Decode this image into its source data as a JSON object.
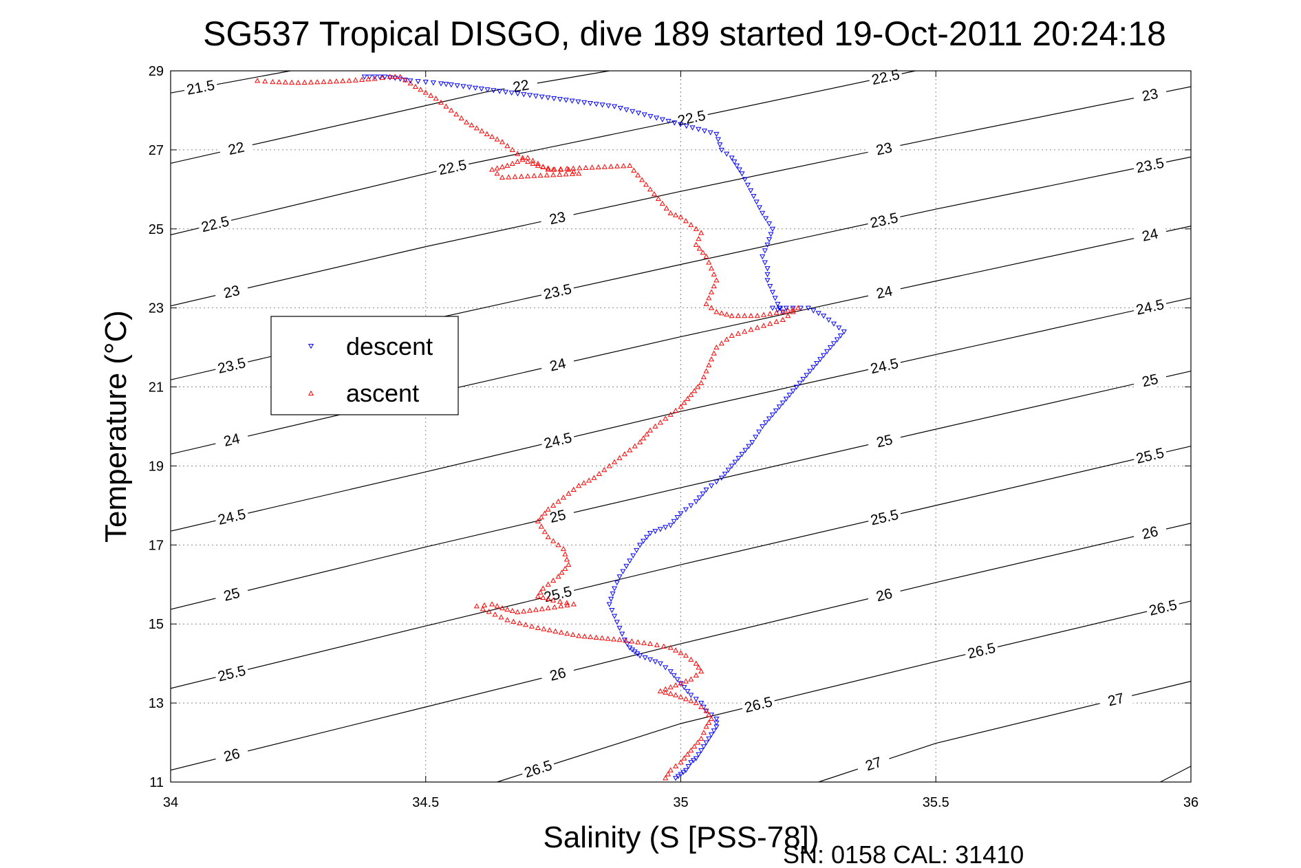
{
  "chart_data": {
    "type": "scatter",
    "title": "SG537 Tropical DISGO, dive 189 started 19-Oct-2011 20:24:18",
    "xlabel": "Salinity (S [PSS-78])",
    "ylabel": "Temperature (°C)",
    "xlim": [
      34,
      36
    ],
    "ylim": [
      11,
      29
    ],
    "xticks": [
      "34",
      "34.5",
      "35",
      "35.5",
      "36"
    ],
    "yticks": [
      "11",
      "13",
      "15",
      "17",
      "19",
      "21",
      "23",
      "25",
      "27",
      "29"
    ],
    "grid": true,
    "legend_position": "upper-left",
    "annotation": "SN: 0158  CAL: 31410",
    "density_contours": [
      {
        "label": "21.5",
        "points": [
          [
            34.0,
            28.44
          ],
          [
            34.235,
            29.0
          ]
        ]
      },
      {
        "label": "22",
        "points": [
          [
            34.0,
            26.66
          ],
          [
            34.62,
            28.47
          ],
          [
            34.86,
            29.0
          ]
        ]
      },
      {
        "label": "22.5",
        "points": [
          [
            34.0,
            24.85
          ],
          [
            34.55,
            26.55
          ],
          [
            35.0,
            27.75
          ],
          [
            35.46,
            29.0
          ]
        ]
      },
      {
        "label": "23",
        "points": [
          [
            34.0,
            23.05
          ],
          [
            34.5,
            24.55
          ],
          [
            35.0,
            25.95
          ],
          [
            35.5,
            27.3
          ],
          [
            36.0,
            28.6
          ]
        ]
      },
      {
        "label": "23.5",
        "points": [
          [
            34.0,
            21.18
          ],
          [
            34.5,
            22.68
          ],
          [
            35.0,
            24.1
          ],
          [
            35.5,
            25.5
          ],
          [
            36.0,
            26.82
          ]
        ]
      },
      {
        "label": "24",
        "points": [
          [
            34.0,
            19.3
          ],
          [
            34.5,
            20.8
          ],
          [
            35.0,
            22.27
          ],
          [
            35.5,
            23.68
          ],
          [
            36.0,
            25.07
          ]
        ]
      },
      {
        "label": "24.5",
        "points": [
          [
            34.0,
            17.35
          ],
          [
            34.5,
            18.85
          ],
          [
            35.0,
            20.38
          ],
          [
            35.5,
            21.82
          ],
          [
            36.0,
            23.25
          ]
        ]
      },
      {
        "label": "25",
        "points": [
          [
            34.0,
            15.37
          ],
          [
            34.5,
            16.95
          ],
          [
            35.0,
            18.45
          ],
          [
            35.5,
            19.93
          ],
          [
            36.0,
            21.4
          ]
        ]
      },
      {
        "label": "25.5",
        "points": [
          [
            34.0,
            13.37
          ],
          [
            34.5,
            14.95
          ],
          [
            35.0,
            16.5
          ],
          [
            35.5,
            18.0
          ],
          [
            36.0,
            19.5
          ]
        ]
      },
      {
        "label": "26",
        "points": [
          [
            34.0,
            11.3
          ],
          [
            34.5,
            12.9
          ],
          [
            35.0,
            14.5
          ],
          [
            35.5,
            16.05
          ],
          [
            36.0,
            17.55
          ]
        ]
      },
      {
        "label": "26.5",
        "points": [
          [
            34.64,
            11.0
          ],
          [
            35.0,
            12.48
          ],
          [
            35.5,
            14.05
          ],
          [
            36.0,
            15.58
          ]
        ]
      },
      {
        "label": "27",
        "points": [
          [
            35.27,
            11.0
          ],
          [
            35.5,
            11.98
          ],
          [
            36.0,
            13.55
          ]
        ]
      },
      {
        "label": "",
        "points": [
          [
            35.94,
            11.0
          ],
          [
            36.0,
            11.4
          ]
        ]
      }
    ],
    "series": [
      {
        "name": "descent",
        "color": "#0000ff",
        "marker": "triangle-down",
        "x": [
          34.38,
          34.4,
          34.42,
          34.44,
          34.47,
          34.5,
          34.53,
          34.55,
          34.87,
          35.07,
          35.08,
          35.1,
          35.11,
          35.12,
          35.16,
          35.18,
          35.17,
          35.16,
          35.17,
          35.17,
          35.18,
          35.19,
          35.2,
          35.18,
          35.22,
          35.25,
          35.28,
          35.3,
          35.32,
          35.3,
          35.28,
          35.26,
          35.24,
          35.22,
          35.2,
          35.18,
          35.16,
          35.14,
          35.12,
          35.1,
          35.08,
          35.05,
          35.03,
          35.0,
          34.98,
          34.94,
          34.92,
          34.9,
          34.88,
          34.87,
          34.86,
          34.87,
          34.88,
          34.89,
          34.9,
          34.91,
          34.92,
          34.94,
          34.96,
          34.98,
          35.0,
          35.02,
          35.04,
          35.05,
          35.07,
          35.07,
          35.06,
          35.05,
          35.04,
          35.03,
          35.02,
          35.01,
          35.0,
          34.99
        ],
        "y": [
          28.85,
          28.85,
          28.85,
          28.82,
          28.75,
          28.72,
          28.68,
          28.65,
          28.1,
          27.4,
          27.0,
          26.8,
          26.6,
          26.4,
          25.4,
          25.0,
          24.6,
          24.3,
          24.0,
          23.7,
          23.4,
          23.1,
          22.9,
          23.0,
          23.0,
          23.0,
          22.8,
          22.6,
          22.4,
          22.1,
          21.8,
          21.5,
          21.2,
          20.9,
          20.6,
          20.3,
          20.0,
          19.6,
          19.3,
          19.0,
          18.7,
          18.4,
          18.1,
          17.8,
          17.5,
          17.3,
          17.0,
          16.6,
          16.2,
          15.9,
          15.5,
          15.2,
          14.9,
          14.6,
          14.4,
          14.3,
          14.2,
          14.1,
          14.0,
          13.8,
          13.5,
          13.2,
          13.0,
          12.8,
          12.6,
          12.4,
          12.2,
          12.0,
          11.8,
          11.6,
          11.5,
          11.3,
          11.2,
          11.1
        ]
      },
      {
        "name": "ascent",
        "color": "#ff0000",
        "marker": "triangle-up",
        "x": [
          34.17,
          34.2,
          34.25,
          34.3,
          34.35,
          34.4,
          34.43,
          34.45,
          34.48,
          34.52,
          34.55,
          34.58,
          34.62,
          34.65,
          34.68,
          34.7,
          34.72,
          34.75,
          34.78,
          34.8,
          34.65,
          34.63,
          34.66,
          34.7,
          34.74,
          34.9,
          34.98,
          35.0,
          35.02,
          35.04,
          35.03,
          35.05,
          35.06,
          35.07,
          35.06,
          35.05,
          35.07,
          35.1,
          35.15,
          35.2,
          35.23,
          35.2,
          35.15,
          35.1,
          35.07,
          35.06,
          35.05,
          35.04,
          35.02,
          35.0,
          34.97,
          34.94,
          34.92,
          34.89,
          34.86,
          34.83,
          34.8,
          34.77,
          34.74,
          34.72,
          34.74,
          34.77,
          34.78,
          34.76,
          34.73,
          34.72,
          34.75,
          34.79,
          34.74,
          34.68,
          34.65,
          34.63,
          34.6,
          34.66,
          34.72,
          34.8,
          34.88,
          34.94,
          34.98,
          35.01,
          35.03,
          35.04,
          35.02,
          34.98,
          34.96,
          34.99,
          35.03,
          35.05,
          35.06,
          35.05,
          35.04,
          35.02,
          35.0,
          34.98,
          34.97
        ],
        "y": [
          28.75,
          28.72,
          28.7,
          28.72,
          28.75,
          28.8,
          28.85,
          28.85,
          28.6,
          28.3,
          28.0,
          27.7,
          27.4,
          27.2,
          26.9,
          26.7,
          26.6,
          26.5,
          26.5,
          26.4,
          26.3,
          26.5,
          26.6,
          26.8,
          26.5,
          26.6,
          25.4,
          25.3,
          25.1,
          24.9,
          24.6,
          24.3,
          24.0,
          23.7,
          23.4,
          23.1,
          22.9,
          22.8,
          22.8,
          22.9,
          23.0,
          22.7,
          22.5,
          22.3,
          22.0,
          21.7,
          21.4,
          21.1,
          20.8,
          20.5,
          20.2,
          19.9,
          19.6,
          19.3,
          19.0,
          18.7,
          18.5,
          18.2,
          17.9,
          17.6,
          17.2,
          16.9,
          16.5,
          16.2,
          15.9,
          15.7,
          15.6,
          15.5,
          15.4,
          15.3,
          15.4,
          15.5,
          15.45,
          15.1,
          14.9,
          14.7,
          14.6,
          14.5,
          14.4,
          14.2,
          14.0,
          13.8,
          13.6,
          13.4,
          13.3,
          13.2,
          13.0,
          12.8,
          12.6,
          12.4,
          12.1,
          11.8,
          11.5,
          11.3,
          11.1
        ]
      }
    ]
  }
}
